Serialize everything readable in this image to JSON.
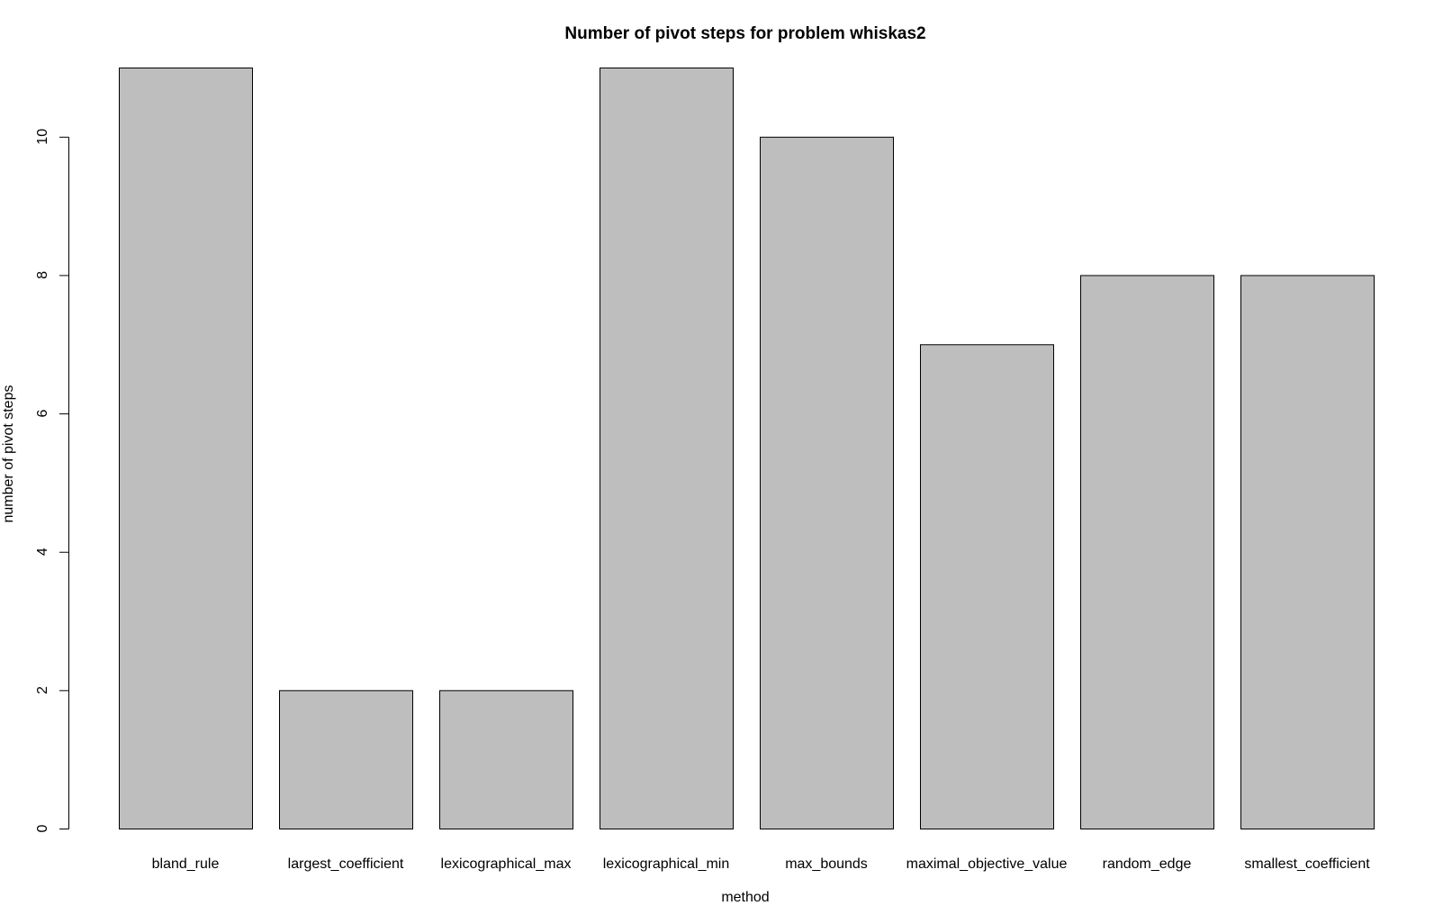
{
  "chart_data": {
    "type": "bar",
    "title": "Number of pivot steps for problem whiskas2",
    "xlabel": "method",
    "ylabel": "number of pivot steps",
    "categories": [
      "bland_rule",
      "largest_coefficient",
      "lexicographical_max",
      "lexicographical_min",
      "max_bounds",
      "maximal_objective_value",
      "random_edge",
      "smallest_coefficient"
    ],
    "values": [
      11,
      2,
      2,
      11,
      10,
      7,
      8,
      8
    ],
    "ylim": [
      0,
      11
    ],
    "yticks": [
      0,
      2,
      4,
      6,
      8,
      10
    ],
    "bar_color": "#bebebe",
    "grid": false,
    "legend": "none"
  }
}
